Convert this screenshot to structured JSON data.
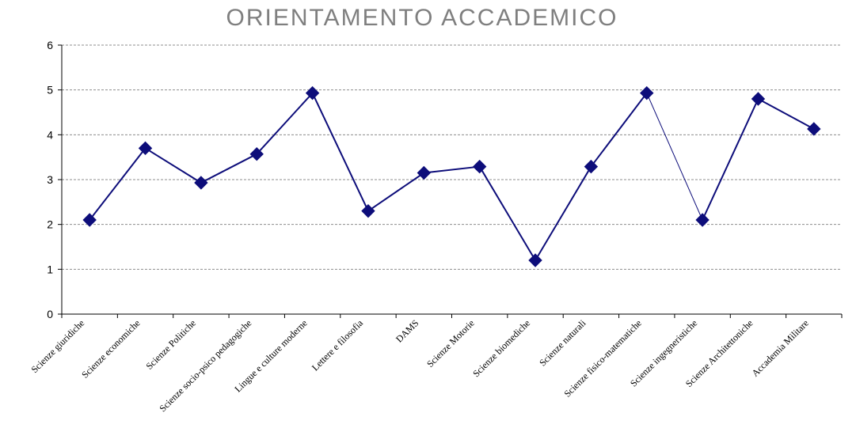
{
  "chart_data": {
    "type": "line",
    "title": "ORIENTAMENTO ACCADEMICO",
    "xlabel": "",
    "ylabel": "",
    "ylim": [
      0,
      6
    ],
    "yticks": [
      0,
      1,
      2,
      3,
      4,
      5,
      6
    ],
    "grid": true,
    "categories": [
      "Scienze giuridiche",
      "Scienze economiche",
      "Scienze Politiche",
      "Scienze socio-psico pedagogiche",
      "Lingue e culture moderne",
      "Lettere e filosofia",
      "DAMS",
      "Scienze Motorie",
      "Scienze biomediche",
      "Scienze naturali",
      "Scienze fisico-matematiche",
      "Scienze ingegneristiche",
      "Scienze Architettoniche",
      "Accademia Militare"
    ],
    "series": [
      {
        "values": [
          2.1,
          3.7,
          2.93,
          3.57,
          4.93,
          2.3,
          3.15,
          3.29,
          1.2,
          3.29,
          4.93,
          2.1,
          4.8,
          4.13
        ],
        "color": "#0d0d7a"
      }
    ],
    "colors": {
      "line": "#0d0d7a",
      "marker": "#0d0d7a",
      "grid": "#8c8c8c",
      "axis": "#000000",
      "title": "#7f7f7f"
    }
  }
}
